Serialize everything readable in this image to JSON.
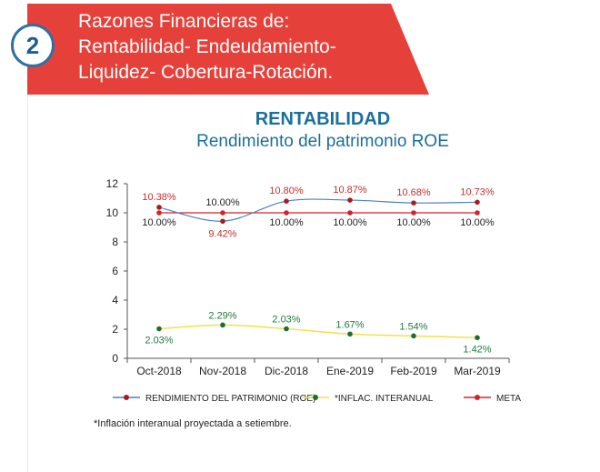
{
  "banner": {
    "number": "2",
    "title": "Razones Financieras de:",
    "subtitle": "Rentabilidad- Endeudamiento-Liquidez- Cobertura-Rotación."
  },
  "chart_data": {
    "type": "line",
    "title": "RENTABILIDAD",
    "subtitle": "Rendimiento del patrimonio ROE",
    "categories": [
      "Oct-2018",
      "Nov-2018",
      "Dic-2018",
      "Ene-2019",
      "Feb-2019",
      "Mar-2019"
    ],
    "ylim": [
      0,
      12
    ],
    "yticks": [
      0,
      2,
      4,
      6,
      8,
      10,
      12
    ],
    "grid": false,
    "legend_position": "bottom",
    "series": [
      {
        "name": "RENDIMIENTO DEL PATRIMONIO (ROE)",
        "values": [
          10.38,
          9.42,
          10.8,
          10.87,
          10.68,
          10.73
        ],
        "labels": [
          "10.38%",
          "9.42%",
          "10.80%",
          "10.87%",
          "10.68%",
          "10.73%"
        ],
        "line_color": "#4d7fc4",
        "marker_color": "#a61d1d",
        "label_color": "#c0302b"
      },
      {
        "name": "*INFLAC. INTERANUAL",
        "values": [
          2.03,
          2.29,
          2.03,
          1.67,
          1.54,
          1.42
        ],
        "labels": [
          "2.03%",
          "2.29%",
          "2.03%",
          "1.67%",
          "1.54%",
          "1.42%"
        ],
        "line_color": "#f2e14b",
        "marker_color": "#1f6b34",
        "label_color": "#1f7a3d"
      },
      {
        "name": "META",
        "values": [
          10.0,
          10.0,
          10.0,
          10.0,
          10.0,
          10.0
        ],
        "labels": [
          "10.00%",
          "10.00%",
          "10.00%",
          "10.00%",
          "10.00%",
          "10.00%"
        ],
        "line_color": "#d2232a",
        "marker_color": "#d2232a",
        "label_color": "#222222"
      }
    ]
  },
  "footnote": "*Inflación interanual proyectada a setiembre."
}
